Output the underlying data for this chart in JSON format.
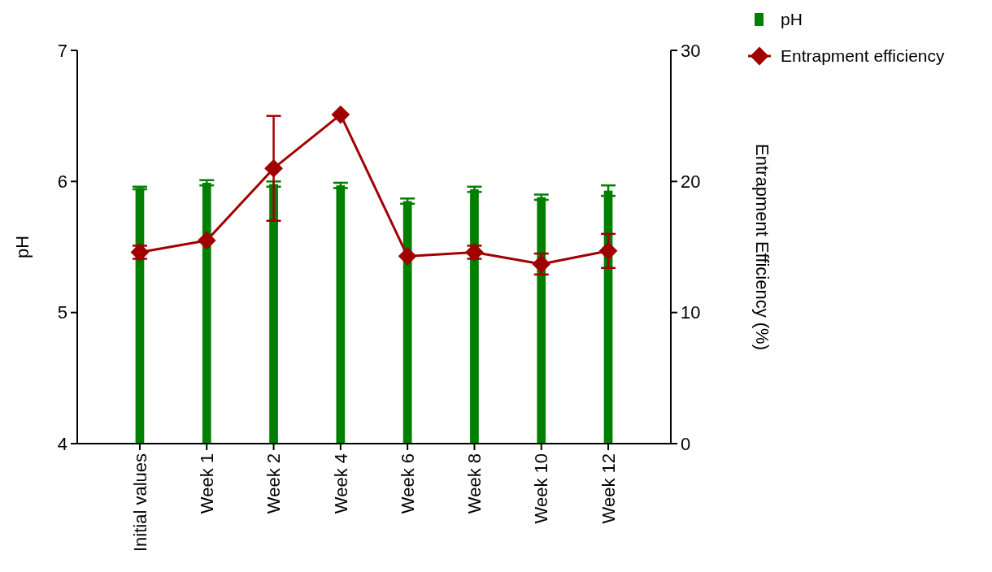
{
  "chart_data": {
    "type": "bar",
    "categories": [
      "Initial values",
      "Week 1",
      "Week 2",
      "Week 4",
      "Week 6",
      "Week 8",
      "Week 10",
      "Week 12"
    ],
    "series": [
      {
        "name": "pH",
        "color": "#007f00",
        "values": [
          5.95,
          5.99,
          5.98,
          5.97,
          5.85,
          5.94,
          5.88,
          5.93
        ],
        "errors": [
          0.01,
          0.02,
          0.02,
          0.02,
          0.02,
          0.02,
          0.02,
          0.04
        ]
      },
      {
        "name": "Entrapment efficiency",
        "type": "line",
        "axis": "y2",
        "color": "#a00000",
        "marker": "diamond",
        "values": [
          14.6,
          15.5,
          21.0,
          25.1,
          14.3,
          14.6,
          13.7,
          14.7
        ],
        "errors": [
          0.5,
          null,
          4,
          null,
          null,
          0.5,
          0.8,
          1.3
        ]
      }
    ],
    "ylabel": "pH",
    "y2label": "Entrapment Efficiency (%)",
    "ylim": [
      4,
      7
    ],
    "yticks": [
      4,
      5,
      6,
      7
    ],
    "y2lim": [
      0,
      30
    ],
    "y2ticks": [
      0,
      10,
      20,
      30
    ],
    "grid": false,
    "legend": "top right"
  }
}
